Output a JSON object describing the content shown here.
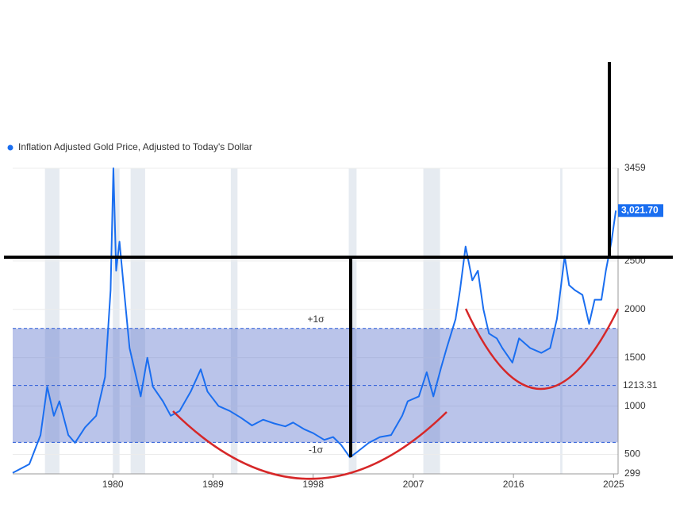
{
  "chart_data": {
    "type": "line",
    "legend": "Inflation Adjusted Gold Price, Adjusted to Today's Dollar",
    "x": [
      1971,
      1972.5,
      1973.5,
      1974.1,
      1974.7,
      1975.2,
      1976.0,
      1976.6,
      1977.5,
      1978.5,
      1979.3,
      1979.8,
      1980.05,
      1980.3,
      1980.6,
      1981.0,
      1981.5,
      1982.5,
      1983.1,
      1983.6,
      1984.5,
      1985.2,
      1986.0,
      1987.0,
      1987.9,
      1988.5,
      1989.5,
      1990.5,
      1991.5,
      1992.5,
      1993.5,
      1994.5,
      1995.5,
      1996.2,
      1997.2,
      1998.0,
      1999.0,
      1999.8,
      2000.5,
      2001.3,
      2002.0,
      2003.0,
      2004.0,
      2005.0,
      2006.0,
      2006.5,
      2007.5,
      2008.2,
      2008.8,
      2009.5,
      2010.0,
      2010.8,
      2011.2,
      2011.7,
      2012.3,
      2012.8,
      2013.3,
      2013.8,
      2014.5,
      2015.0,
      2015.9,
      2016.5,
      2017.5,
      2018.5,
      2019.3,
      2019.9,
      2020.6,
      2021.0,
      2021.5,
      2022.2,
      2022.8,
      2023.3,
      2023.9,
      2024.3,
      2024.8,
      2025.2
    ],
    "series": [
      {
        "name": "Inflation Adjusted Gold Price, Adjusted to Today's Dollar",
        "color": "#1a6ef0",
        "values": [
          310,
          400,
          700,
          1200,
          900,
          1050,
          700,
          620,
          780,
          900,
          1300,
          2200,
          3459,
          2400,
          2700,
          2200,
          1600,
          1100,
          1500,
          1200,
          1050,
          900,
          950,
          1150,
          1380,
          1150,
          1000,
          950,
          880,
          800,
          860,
          820,
          790,
          830,
          760,
          720,
          650,
          680,
          600,
          470,
          530,
          620,
          680,
          700,
          900,
          1050,
          1100,
          1350,
          1100,
          1400,
          1600,
          1900,
          2200,
          2650,
          2300,
          2400,
          2000,
          1750,
          1700,
          1600,
          1450,
          1700,
          1600,
          1550,
          1600,
          1900,
          2550,
          2250,
          2200,
          2150,
          1850,
          2100,
          2100,
          2400,
          2700,
          3021.7
        ]
      }
    ],
    "current_value": {
      "value": 3021.7,
      "label": "3,021.70"
    },
    "mean": 1213.31,
    "plus_sigma": {
      "value": 1803,
      "label": "+1σ"
    },
    "minus_sigma": {
      "value": 624,
      "label": "-1σ"
    },
    "recessions": [
      [
        1973.9,
        1975.2
      ],
      [
        1980.0,
        1980.6
      ],
      [
        1981.6,
        1982.9
      ],
      [
        1990.6,
        1991.2
      ],
      [
        2001.2,
        2001.9
      ],
      [
        2007.9,
        2009.4
      ],
      [
        2020.2,
        2020.4
      ]
    ],
    "xlim": [
      1971,
      2025.4
    ],
    "xticks": [
      1980,
      1989,
      1998,
      2007,
      2016,
      2025
    ],
    "ylim": [
      299,
      3459
    ],
    "yticks": [
      299,
      500,
      1000,
      1500,
      2000,
      2500,
      3459
    ],
    "grid": true
  }
}
